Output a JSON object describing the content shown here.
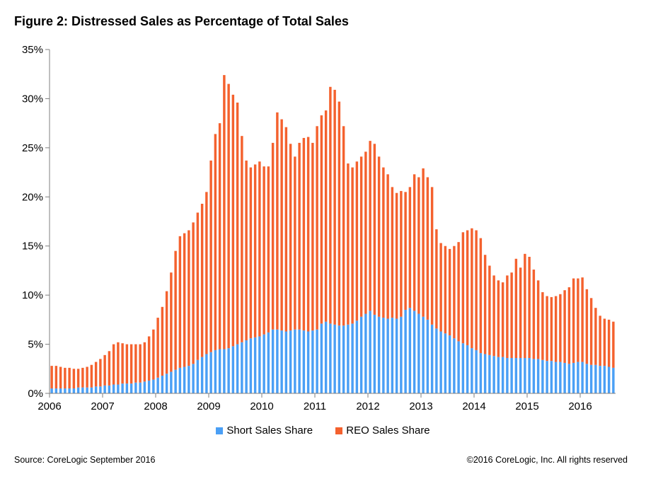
{
  "footer": {
    "source": "Source: CoreLogic September 2016",
    "copyright": "©2016 CoreLogic, Inc. All rights reserved"
  },
  "colors": {
    "short": "#4a9ff5",
    "reo": "#f4612e",
    "axis": "#7f7f7f"
  },
  "chart_data": {
    "type": "bar",
    "stacked": true,
    "title": "Figure 2: Distressed Sales as Percentage of Total Sales",
    "xlabel": "",
    "ylabel": "",
    "ylim": [
      0,
      35
    ],
    "y_ticks": [
      0,
      5,
      10,
      15,
      20,
      25,
      30,
      35
    ],
    "y_tick_labels": [
      "0%",
      "5%",
      "10%",
      "15%",
      "20%",
      "25%",
      "30%",
      "35%"
    ],
    "x_tick_labels": [
      "2006",
      "2007",
      "2008",
      "2009",
      "2010",
      "2011",
      "2012",
      "2013",
      "2014",
      "2015",
      "2016"
    ],
    "start": "2006-01",
    "end": "2016-07",
    "legend": [
      "Short Sales Share",
      "REO Sales Share"
    ],
    "legend_position": "bottom",
    "series": [
      {
        "name": "Short Sales Share",
        "values": [
          0.5,
          0.5,
          0.5,
          0.5,
          0.5,
          0.5,
          0.6,
          0.6,
          0.6,
          0.6,
          0.7,
          0.7,
          0.8,
          0.8,
          0.9,
          0.9,
          1.0,
          1.0,
          1.0,
          1.1,
          1.1,
          1.2,
          1.3,
          1.4,
          1.6,
          1.8,
          2.0,
          2.2,
          2.4,
          2.6,
          2.7,
          2.8,
          3.0,
          3.4,
          3.7,
          4.0,
          4.2,
          4.4,
          4.5,
          4.5,
          4.6,
          4.8,
          5.0,
          5.2,
          5.4,
          5.6,
          5.7,
          5.8,
          6.0,
          6.2,
          6.5,
          6.5,
          6.4,
          6.3,
          6.4,
          6.5,
          6.5,
          6.4,
          6.3,
          6.4,
          6.5,
          7.1,
          7.3,
          7.1,
          7.0,
          6.9,
          6.9,
          7.0,
          7.1,
          7.4,
          7.8,
          8.1,
          8.4,
          8.0,
          7.8,
          7.7,
          7.6,
          7.7,
          7.6,
          7.8,
          8.5,
          8.7,
          8.4,
          8.1,
          7.8,
          7.5,
          7.0,
          6.6,
          6.3,
          6.1,
          5.9,
          5.6,
          5.3,
          5.1,
          4.9,
          4.6,
          4.4,
          4.1,
          4.0,
          3.9,
          3.8,
          3.7,
          3.7,
          3.6,
          3.6,
          3.6,
          3.6,
          3.6,
          3.6,
          3.5,
          3.5,
          3.4,
          3.3,
          3.3,
          3.2,
          3.2,
          3.1,
          3.0,
          3.1,
          3.2,
          3.2,
          3.0,
          2.9,
          2.9,
          2.8,
          2.8,
          2.7,
          2.6
        ]
      },
      {
        "name": "REO Sales Share",
        "values": [
          2.3,
          2.3,
          2.2,
          2.1,
          2.1,
          2.0,
          1.9,
          2.0,
          2.1,
          2.3,
          2.5,
          2.8,
          3.1,
          3.5,
          4.1,
          4.3,
          4.1,
          4.0,
          4.0,
          3.9,
          3.9,
          4.0,
          4.5,
          5.1,
          6.1,
          7.0,
          8.4,
          10.1,
          12.1,
          13.4,
          13.6,
          13.8,
          14.4,
          15.0,
          15.6,
          16.5,
          19.5,
          22.0,
          23.0,
          27.9,
          26.9,
          25.6,
          24.6,
          21.0,
          18.3,
          17.4,
          17.6,
          17.8,
          17.1,
          16.9,
          19.0,
          22.1,
          21.5,
          20.8,
          19.0,
          17.6,
          19.0,
          19.6,
          19.8,
          19.1,
          20.7,
          21.2,
          21.5,
          24.1,
          23.9,
          22.8,
          20.3,
          16.4,
          15.9,
          16.2,
          16.3,
          16.5,
          17.3,
          17.4,
          16.3,
          15.3,
          14.7,
          13.3,
          12.8,
          12.8,
          12.0,
          12.3,
          13.9,
          13.9,
          15.1,
          14.5,
          14.0,
          10.1,
          9.0,
          8.9,
          8.8,
          9.4,
          10.1,
          11.3,
          11.7,
          12.2,
          12.2,
          11.7,
          10.1,
          9.1,
          8.2,
          7.8,
          7.6,
          8.4,
          8.7,
          10.1,
          9.2,
          10.6,
          10.3,
          9.1,
          8.0,
          6.9,
          6.6,
          6.5,
          6.7,
          6.9,
          7.4,
          7.8,
          8.6,
          8.5,
          8.6,
          7.6,
          6.8,
          5.8,
          5.1,
          4.8,
          4.8,
          4.7
        ]
      }
    ]
  }
}
